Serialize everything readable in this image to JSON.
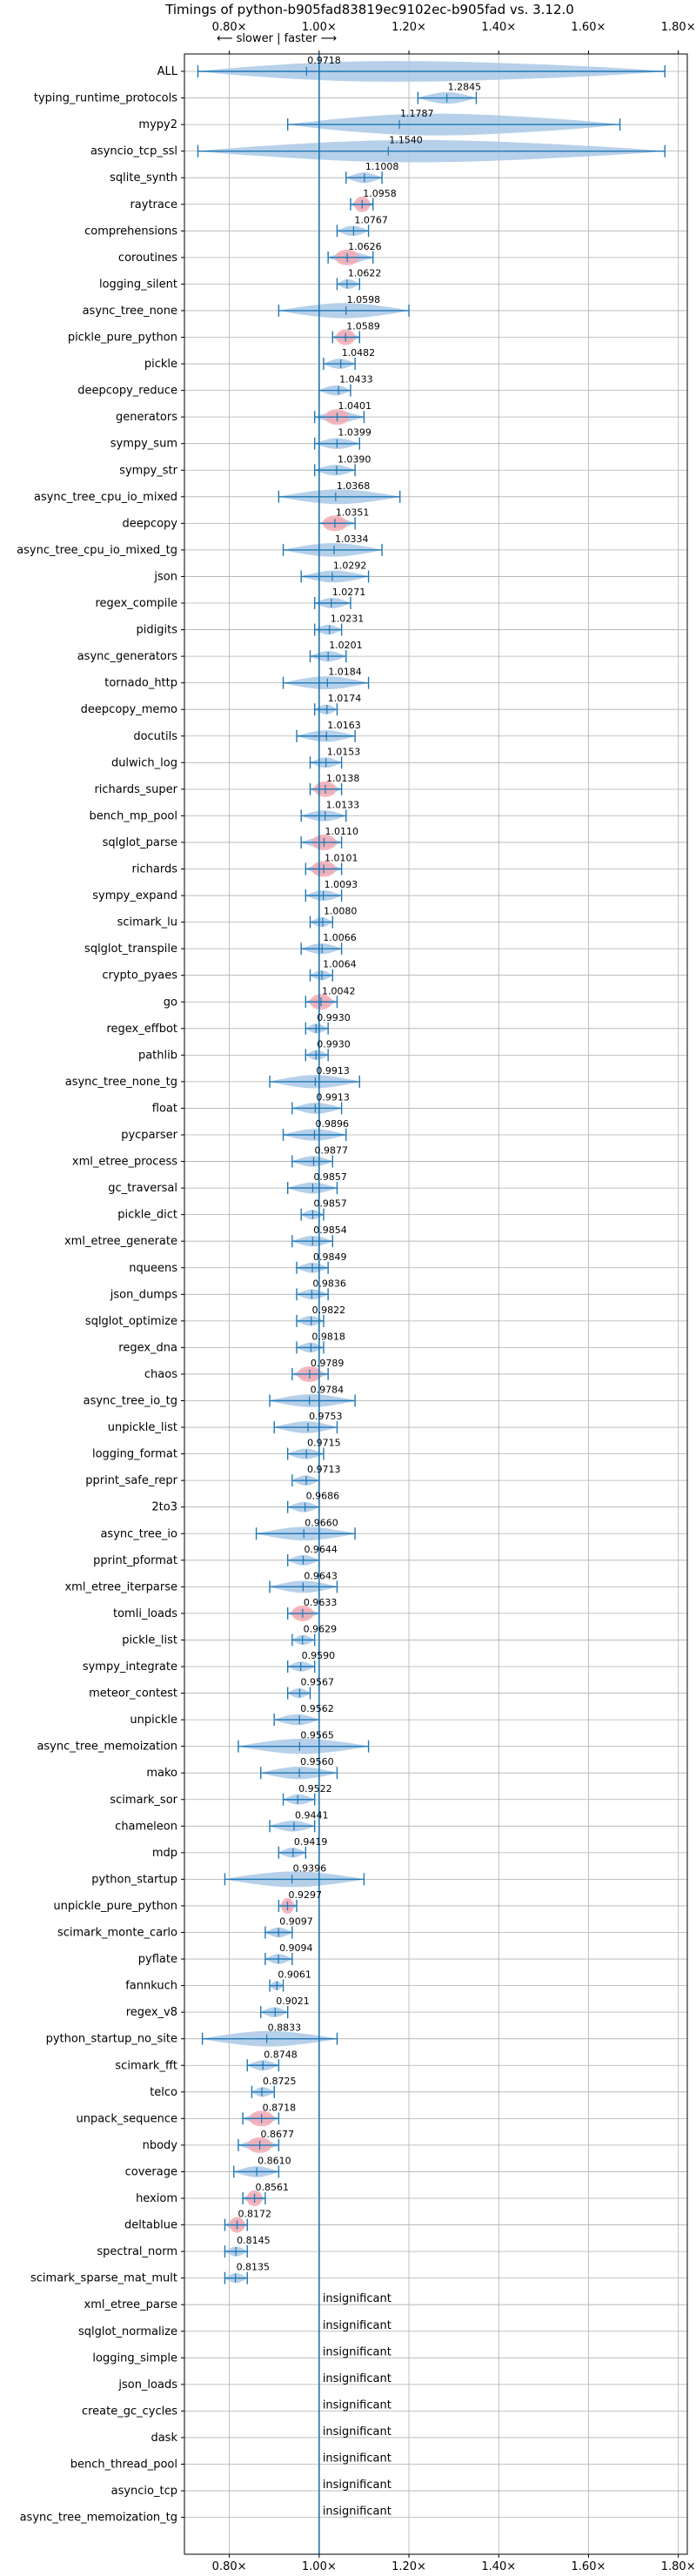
{
  "chart_data": {
    "type": "violin",
    "title": "Timings of python-b905fad83819ec9102ec-b905fad vs. 3.12.0",
    "subtitle": "⟵ slower | faster ⟶",
    "xlim": [
      0.7,
      1.82
    ],
    "xticks": [
      0.8,
      1.0,
      1.2,
      1.4,
      1.6,
      1.8
    ],
    "xtick_labels": [
      "0.80×",
      "1.00×",
      "1.20×",
      "1.40×",
      "1.60×",
      "1.80×"
    ],
    "reference_line": 1.0,
    "grid": true,
    "colors": {
      "violin": "#a9c8e6",
      "highlight": "#f4aab4",
      "line": "#1f77b4",
      "grid": "#b0b0b0"
    },
    "insignificant_label": "insignificant",
    "benchmarks": [
      {
        "name": "ALL",
        "mean": 0.9718,
        "min": 0.73,
        "max": 1.77,
        "sig": true,
        "highlight": false
      },
      {
        "name": "typing_runtime_protocols",
        "mean": 1.2845,
        "min": 1.22,
        "max": 1.35,
        "sig": true,
        "highlight": false
      },
      {
        "name": "mypy2",
        "mean": 1.1787,
        "min": 0.93,
        "max": 1.67,
        "sig": true,
        "highlight": false
      },
      {
        "name": "asyncio_tcp_ssl",
        "mean": 1.154,
        "min": 0.73,
        "max": 1.77,
        "sig": true,
        "highlight": false
      },
      {
        "name": "sqlite_synth",
        "mean": 1.1008,
        "min": 1.06,
        "max": 1.14,
        "sig": true,
        "highlight": false
      },
      {
        "name": "raytrace",
        "mean": 1.0958,
        "min": 1.07,
        "max": 1.12,
        "sig": true,
        "highlight": true
      },
      {
        "name": "comprehensions",
        "mean": 1.0767,
        "min": 1.04,
        "max": 1.11,
        "sig": true,
        "highlight": false
      },
      {
        "name": "coroutines",
        "mean": 1.0626,
        "min": 1.02,
        "max": 1.12,
        "sig": true,
        "highlight": true
      },
      {
        "name": "logging_silent",
        "mean": 1.0622,
        "min": 1.04,
        "max": 1.09,
        "sig": true,
        "highlight": false
      },
      {
        "name": "async_tree_none",
        "mean": 1.0598,
        "min": 0.91,
        "max": 1.2,
        "sig": true,
        "highlight": false
      },
      {
        "name": "pickle_pure_python",
        "mean": 1.0589,
        "min": 1.03,
        "max": 1.09,
        "sig": true,
        "highlight": true
      },
      {
        "name": "pickle",
        "mean": 1.0482,
        "min": 1.01,
        "max": 1.08,
        "sig": true,
        "highlight": false
      },
      {
        "name": "deepcopy_reduce",
        "mean": 1.0433,
        "min": 1.0,
        "max": 1.07,
        "sig": true,
        "highlight": false
      },
      {
        "name": "generators",
        "mean": 1.0401,
        "min": 0.99,
        "max": 1.1,
        "sig": true,
        "highlight": true
      },
      {
        "name": "sympy_sum",
        "mean": 1.0399,
        "min": 0.99,
        "max": 1.09,
        "sig": true,
        "highlight": false
      },
      {
        "name": "sympy_str",
        "mean": 1.039,
        "min": 0.99,
        "max": 1.08,
        "sig": true,
        "highlight": false
      },
      {
        "name": "async_tree_cpu_io_mixed",
        "mean": 1.0368,
        "min": 0.91,
        "max": 1.18,
        "sig": true,
        "highlight": false
      },
      {
        "name": "deepcopy",
        "mean": 1.0351,
        "min": 1.0,
        "max": 1.08,
        "sig": true,
        "highlight": true
      },
      {
        "name": "async_tree_cpu_io_mixed_tg",
        "mean": 1.0334,
        "min": 0.92,
        "max": 1.14,
        "sig": true,
        "highlight": false
      },
      {
        "name": "json",
        "mean": 1.0292,
        "min": 0.96,
        "max": 1.11,
        "sig": true,
        "highlight": false
      },
      {
        "name": "regex_compile",
        "mean": 1.0271,
        "min": 0.99,
        "max": 1.07,
        "sig": true,
        "highlight": false
      },
      {
        "name": "pidigits",
        "mean": 1.0231,
        "min": 0.99,
        "max": 1.05,
        "sig": true,
        "highlight": false
      },
      {
        "name": "async_generators",
        "mean": 1.0201,
        "min": 0.98,
        "max": 1.06,
        "sig": true,
        "highlight": false
      },
      {
        "name": "tornado_http",
        "mean": 1.0184,
        "min": 0.92,
        "max": 1.11,
        "sig": true,
        "highlight": false
      },
      {
        "name": "deepcopy_memo",
        "mean": 1.0174,
        "min": 0.99,
        "max": 1.04,
        "sig": true,
        "highlight": false
      },
      {
        "name": "docutils",
        "mean": 1.0163,
        "min": 0.95,
        "max": 1.08,
        "sig": true,
        "highlight": false
      },
      {
        "name": "dulwich_log",
        "mean": 1.0153,
        "min": 0.98,
        "max": 1.05,
        "sig": true,
        "highlight": false
      },
      {
        "name": "richards_super",
        "mean": 1.0138,
        "min": 0.98,
        "max": 1.05,
        "sig": true,
        "highlight": true
      },
      {
        "name": "bench_mp_pool",
        "mean": 1.0133,
        "min": 0.96,
        "max": 1.06,
        "sig": true,
        "highlight": false
      },
      {
        "name": "sqlglot_parse",
        "mean": 1.011,
        "min": 0.96,
        "max": 1.05,
        "sig": true,
        "highlight": true
      },
      {
        "name": "richards",
        "mean": 1.0101,
        "min": 0.97,
        "max": 1.05,
        "sig": true,
        "highlight": true
      },
      {
        "name": "sympy_expand",
        "mean": 1.0093,
        "min": 0.97,
        "max": 1.05,
        "sig": true,
        "highlight": false
      },
      {
        "name": "scimark_lu",
        "mean": 1.008,
        "min": 0.98,
        "max": 1.03,
        "sig": true,
        "highlight": false
      },
      {
        "name": "sqlglot_transpile",
        "mean": 1.0066,
        "min": 0.96,
        "max": 1.05,
        "sig": true,
        "highlight": false
      },
      {
        "name": "crypto_pyaes",
        "mean": 1.0064,
        "min": 0.98,
        "max": 1.03,
        "sig": true,
        "highlight": false
      },
      {
        "name": "go",
        "mean": 1.0042,
        "min": 0.97,
        "max": 1.04,
        "sig": true,
        "highlight": true
      },
      {
        "name": "regex_effbot",
        "mean": 0.993,
        "min": 0.97,
        "max": 1.02,
        "sig": true,
        "highlight": false
      },
      {
        "name": "pathlib",
        "mean": 0.993,
        "min": 0.97,
        "max": 1.02,
        "sig": true,
        "highlight": false
      },
      {
        "name": "async_tree_none_tg",
        "mean": 0.9913,
        "min": 0.89,
        "max": 1.09,
        "sig": true,
        "highlight": false
      },
      {
        "name": "float",
        "mean": 0.9913,
        "min": 0.94,
        "max": 1.05,
        "sig": true,
        "highlight": false
      },
      {
        "name": "pycparser",
        "mean": 0.9896,
        "min": 0.92,
        "max": 1.06,
        "sig": true,
        "highlight": false
      },
      {
        "name": "xml_etree_process",
        "mean": 0.9877,
        "min": 0.94,
        "max": 1.03,
        "sig": true,
        "highlight": false
      },
      {
        "name": "gc_traversal",
        "mean": 0.9857,
        "min": 0.93,
        "max": 1.04,
        "sig": true,
        "highlight": false
      },
      {
        "name": "pickle_dict",
        "mean": 0.9857,
        "min": 0.96,
        "max": 1.01,
        "sig": true,
        "highlight": false
      },
      {
        "name": "xml_etree_generate",
        "mean": 0.9854,
        "min": 0.94,
        "max": 1.03,
        "sig": true,
        "highlight": false
      },
      {
        "name": "nqueens",
        "mean": 0.9849,
        "min": 0.95,
        "max": 1.02,
        "sig": true,
        "highlight": false
      },
      {
        "name": "json_dumps",
        "mean": 0.9836,
        "min": 0.95,
        "max": 1.02,
        "sig": true,
        "highlight": false
      },
      {
        "name": "sqlglot_optimize",
        "mean": 0.9822,
        "min": 0.95,
        "max": 1.01,
        "sig": true,
        "highlight": false
      },
      {
        "name": "regex_dna",
        "mean": 0.9818,
        "min": 0.95,
        "max": 1.01,
        "sig": true,
        "highlight": false
      },
      {
        "name": "chaos",
        "mean": 0.9789,
        "min": 0.94,
        "max": 1.02,
        "sig": true,
        "highlight": true
      },
      {
        "name": "async_tree_io_tg",
        "mean": 0.9784,
        "min": 0.89,
        "max": 1.08,
        "sig": true,
        "highlight": false
      },
      {
        "name": "unpickle_list",
        "mean": 0.9753,
        "min": 0.9,
        "max": 1.04,
        "sig": true,
        "highlight": false
      },
      {
        "name": "logging_format",
        "mean": 0.9715,
        "min": 0.93,
        "max": 1.01,
        "sig": true,
        "highlight": false
      },
      {
        "name": "pprint_safe_repr",
        "mean": 0.9713,
        "min": 0.94,
        "max": 1.0,
        "sig": true,
        "highlight": false
      },
      {
        "name": "2to3",
        "mean": 0.9686,
        "min": 0.93,
        "max": 1.0,
        "sig": true,
        "highlight": false
      },
      {
        "name": "async_tree_io",
        "mean": 0.966,
        "min": 0.86,
        "max": 1.08,
        "sig": true,
        "highlight": false
      },
      {
        "name": "pprint_pformat",
        "mean": 0.9644,
        "min": 0.93,
        "max": 1.0,
        "sig": true,
        "highlight": false
      },
      {
        "name": "xml_etree_iterparse",
        "mean": 0.9643,
        "min": 0.89,
        "max": 1.04,
        "sig": true,
        "highlight": false
      },
      {
        "name": "tomli_loads",
        "mean": 0.9633,
        "min": 0.93,
        "max": 1.0,
        "sig": true,
        "highlight": true
      },
      {
        "name": "pickle_list",
        "mean": 0.9629,
        "min": 0.94,
        "max": 0.99,
        "sig": true,
        "highlight": false
      },
      {
        "name": "sympy_integrate",
        "mean": 0.959,
        "min": 0.93,
        "max": 0.99,
        "sig": true,
        "highlight": false
      },
      {
        "name": "meteor_contest",
        "mean": 0.9567,
        "min": 0.93,
        "max": 0.98,
        "sig": true,
        "highlight": false
      },
      {
        "name": "unpickle",
        "mean": 0.9562,
        "min": 0.9,
        "max": 1.0,
        "sig": true,
        "highlight": false
      },
      {
        "name": "async_tree_memoization",
        "mean": 0.9565,
        "min": 0.82,
        "max": 1.11,
        "sig": true,
        "highlight": false
      },
      {
        "name": "mako",
        "mean": 0.956,
        "min": 0.87,
        "max": 1.04,
        "sig": true,
        "highlight": false
      },
      {
        "name": "scimark_sor",
        "mean": 0.9522,
        "min": 0.92,
        "max": 0.99,
        "sig": true,
        "highlight": false
      },
      {
        "name": "chameleon",
        "mean": 0.9441,
        "min": 0.89,
        "max": 0.99,
        "sig": true,
        "highlight": false
      },
      {
        "name": "mdp",
        "mean": 0.9419,
        "min": 0.91,
        "max": 0.97,
        "sig": true,
        "highlight": false
      },
      {
        "name": "python_startup",
        "mean": 0.9396,
        "min": 0.79,
        "max": 1.1,
        "sig": true,
        "highlight": false
      },
      {
        "name": "unpickle_pure_python",
        "mean": 0.9297,
        "min": 0.91,
        "max": 0.95,
        "sig": true,
        "highlight": true
      },
      {
        "name": "scimark_monte_carlo",
        "mean": 0.9097,
        "min": 0.88,
        "max": 0.94,
        "sig": true,
        "highlight": false
      },
      {
        "name": "pyflate",
        "mean": 0.9094,
        "min": 0.88,
        "max": 0.94,
        "sig": true,
        "highlight": false
      },
      {
        "name": "fannkuch",
        "mean": 0.9061,
        "min": 0.89,
        "max": 0.92,
        "sig": true,
        "highlight": false
      },
      {
        "name": "regex_v8",
        "mean": 0.9021,
        "min": 0.87,
        "max": 0.93,
        "sig": true,
        "highlight": false
      },
      {
        "name": "python_startup_no_site",
        "mean": 0.8833,
        "min": 0.74,
        "max": 1.04,
        "sig": true,
        "highlight": false
      },
      {
        "name": "scimark_fft",
        "mean": 0.8748,
        "min": 0.84,
        "max": 0.91,
        "sig": true,
        "highlight": false
      },
      {
        "name": "telco",
        "mean": 0.8725,
        "min": 0.85,
        "max": 0.9,
        "sig": true,
        "highlight": false
      },
      {
        "name": "unpack_sequence",
        "mean": 0.8718,
        "min": 0.83,
        "max": 0.91,
        "sig": true,
        "highlight": true
      },
      {
        "name": "nbody",
        "mean": 0.8677,
        "min": 0.82,
        "max": 0.91,
        "sig": true,
        "highlight": true
      },
      {
        "name": "coverage",
        "mean": 0.861,
        "min": 0.81,
        "max": 0.91,
        "sig": true,
        "highlight": false
      },
      {
        "name": "hexiom",
        "mean": 0.8561,
        "min": 0.83,
        "max": 0.88,
        "sig": true,
        "highlight": true
      },
      {
        "name": "deltablue",
        "mean": 0.8172,
        "min": 0.79,
        "max": 0.84,
        "sig": true,
        "highlight": true
      },
      {
        "name": "spectral_norm",
        "mean": 0.8145,
        "min": 0.79,
        "max": 0.84,
        "sig": true,
        "highlight": false
      },
      {
        "name": "scimark_sparse_mat_mult",
        "mean": 0.8135,
        "min": 0.79,
        "max": 0.84,
        "sig": true,
        "highlight": false
      },
      {
        "name": "xml_etree_parse",
        "sig": false
      },
      {
        "name": "sqlglot_normalize",
        "sig": false
      },
      {
        "name": "logging_simple",
        "sig": false
      },
      {
        "name": "json_loads",
        "sig": false
      },
      {
        "name": "create_gc_cycles",
        "sig": false
      },
      {
        "name": "dask",
        "sig": false
      },
      {
        "name": "bench_thread_pool",
        "sig": false
      },
      {
        "name": "asyncio_tcp",
        "sig": false
      },
      {
        "name": "async_tree_memoization_tg",
        "sig": false
      }
    ]
  }
}
